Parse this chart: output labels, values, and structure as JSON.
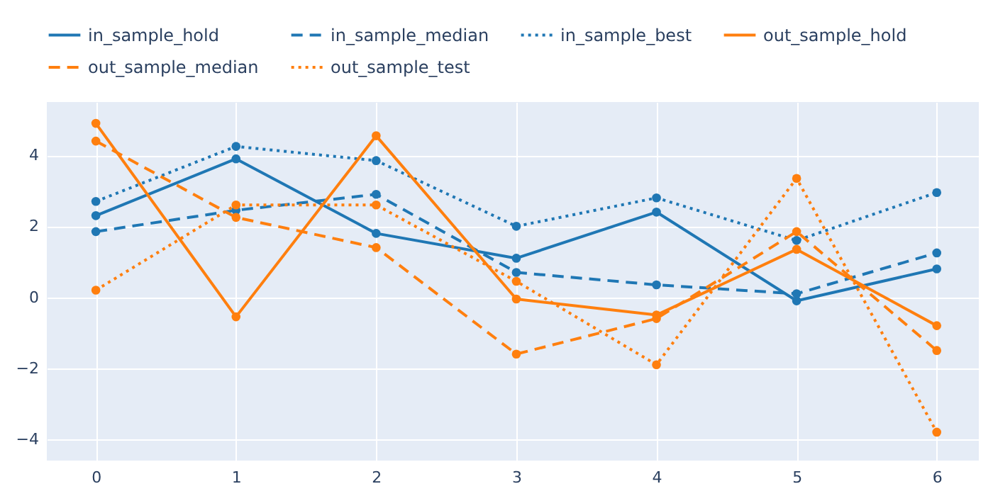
{
  "chart_data": {
    "type": "line",
    "x": [
      0,
      1,
      2,
      3,
      4,
      5,
      6
    ],
    "xlim": [
      -0.35,
      6.3
    ],
    "xticks": [
      0,
      1,
      2,
      3,
      4,
      5,
      6
    ],
    "ylim": [
      -4.6,
      5.5
    ],
    "yticks": [
      -4,
      -2,
      0,
      2,
      4
    ],
    "grid": true,
    "legend": "top",
    "marker": "circle",
    "series": [
      {
        "name": "in_sample_hold",
        "color": "#1f77b4",
        "line_style": "solid",
        "values": [
          2.3,
          3.9,
          1.8,
          1.1,
          2.4,
          -0.1,
          0.8
        ]
      },
      {
        "name": "in_sample_median",
        "color": "#1f77b4",
        "line_style": "dashed",
        "values": [
          1.85,
          2.45,
          2.9,
          0.7,
          0.35,
          0.1,
          1.25
        ]
      },
      {
        "name": "in_sample_best",
        "color": "#1f77b4",
        "line_style": "dotted",
        "values": [
          2.7,
          4.25,
          3.85,
          2.0,
          2.8,
          1.6,
          2.95
        ]
      },
      {
        "name": "out_sample_hold",
        "color": "#ff7f0e",
        "line_style": "solid",
        "values": [
          4.9,
          -0.55,
          4.55,
          -0.05,
          -0.5,
          1.35,
          -0.8
        ]
      },
      {
        "name": "out_sample_median",
        "color": "#ff7f0e",
        "line_style": "dashed",
        "values": [
          4.4,
          2.25,
          1.4,
          -1.6,
          -0.6,
          1.85,
          -1.5
        ]
      },
      {
        "name": "out_sample_test",
        "color": "#ff7f0e",
        "line_style": "dotted",
        "values": [
          0.2,
          2.6,
          2.6,
          0.45,
          -1.9,
          3.35,
          -3.8
        ]
      }
    ]
  }
}
